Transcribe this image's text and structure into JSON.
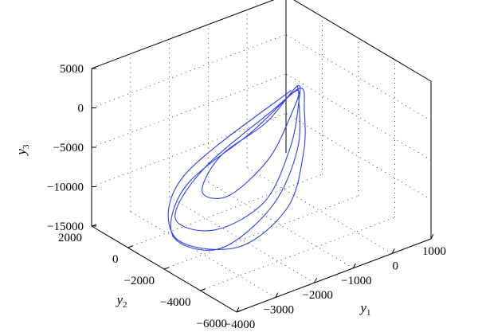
{
  "chart_data": {
    "type": "line",
    "projection": "3d",
    "series": [
      {
        "color": "#2b3ff0",
        "points": [
          [
            -500,
            -1500,
            500
          ],
          [
            -2800,
            -500,
            -7500
          ],
          [
            -3500,
            -1500,
            -12500
          ],
          [
            -2600,
            -3000,
            -13500
          ],
          [
            -1400,
            -3200,
            -10500
          ],
          [
            -600,
            -2400,
            -6000
          ],
          [
            -300,
            -1800,
            -2000
          ],
          [
            -250,
            -1500,
            300
          ],
          [
            -700,
            -900,
            -2500
          ],
          [
            -2200,
            -300,
            -8000
          ],
          [
            -3200,
            -900,
            -11500
          ],
          [
            -2800,
            -2200,
            -12000
          ],
          [
            -1800,
            -2800,
            -9500
          ],
          [
            -900,
            -2300,
            -5000
          ],
          [
            -400,
            -1700,
            -1000
          ],
          [
            -300,
            -1400,
            500
          ],
          [
            -900,
            -1000,
            -3500
          ],
          [
            -1900,
            -600,
            -6500
          ],
          [
            -2600,
            -1100,
            -9000
          ],
          [
            -2300,
            -1900,
            -9000
          ],
          [
            -1400,
            -2100,
            -6000
          ],
          [
            -700,
            -1800,
            -2500
          ],
          [
            -350,
            -1500,
            200
          ],
          [
            -1200,
            -800,
            -4500
          ],
          [
            -2600,
            -200,
            -9500
          ],
          [
            -3400,
            -1200,
            -13000
          ],
          [
            -2900,
            -2700,
            -13500
          ],
          [
            -1700,
            -3000,
            -10000
          ],
          [
            -800,
            -2500,
            -5000
          ],
          [
            -350,
            -1600,
            -500
          ],
          [
            -300,
            -1400,
            600
          ]
        ]
      }
    ],
    "axes": {
      "x": {
        "label": "y1",
        "label_base": "y",
        "label_sub": "1",
        "range": [
          -4000,
          1000
        ],
        "ticks": [
          -4000,
          -3000,
          -2000,
          -1000,
          0,
          1000
        ],
        "tick_labels": [
          "−4000",
          "−3000",
          "−2000",
          "−1000",
          "0",
          "1000"
        ]
      },
      "y": {
        "label": "y2",
        "label_base": "y",
        "label_sub": "2",
        "range": [
          -6000,
          2000
        ],
        "ticks": [
          -6000,
          -4000,
          -2000,
          0,
          2000
        ],
        "tick_labels": [
          "−6000",
          "−4000",
          "−2000",
          "0",
          "2000"
        ]
      },
      "z": {
        "label": "y3",
        "label_base": "y",
        "label_sub": "3",
        "range": [
          -15000,
          5000
        ],
        "ticks": [
          -15000,
          -10000,
          -5000,
          0,
          5000
        ],
        "tick_labels": [
          "−15000",
          "−10000",
          "−5000",
          "0",
          "5000"
        ]
      }
    },
    "grid": true,
    "box": true
  }
}
